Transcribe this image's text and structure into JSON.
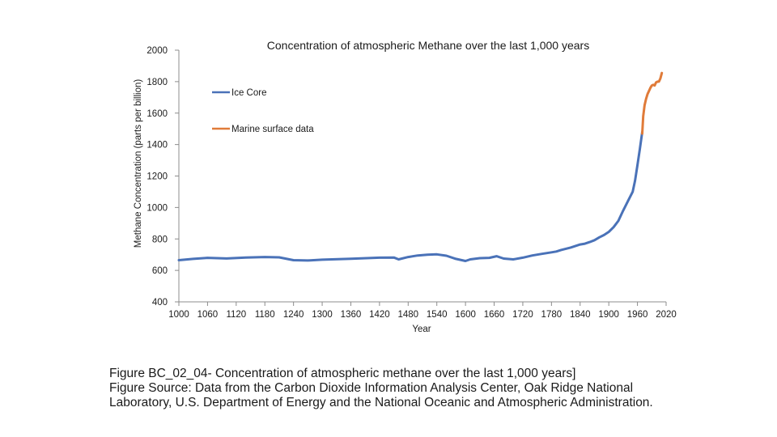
{
  "chart_data": {
    "type": "line",
    "title": "Concentration of atmospheric Methane over the last 1,000 years",
    "xlabel": "Year",
    "ylabel": "Methane Concentration (parts per billion)",
    "xlim": [
      1000,
      2020
    ],
    "ylim": [
      400,
      2000
    ],
    "x_ticks": [
      1000,
      1060,
      1120,
      1180,
      1240,
      1300,
      1360,
      1420,
      1480,
      1540,
      1600,
      1660,
      1720,
      1780,
      1840,
      1900,
      1960,
      2020
    ],
    "y_ticks": [
      400,
      600,
      800,
      1000,
      1200,
      1400,
      1600,
      1800,
      2000
    ],
    "grid": false,
    "legend": "upper-left",
    "series": [
      {
        "name": "Ice Core",
        "color": "#4a72b8",
        "x": [
          1000,
          1030,
          1060,
          1100,
          1140,
          1180,
          1210,
          1240,
          1270,
          1300,
          1360,
          1420,
          1450,
          1460,
          1480,
          1500,
          1520,
          1540,
          1560,
          1580,
          1600,
          1610,
          1630,
          1650,
          1665,
          1680,
          1700,
          1720,
          1740,
          1760,
          1780,
          1790,
          1800,
          1820,
          1840,
          1850,
          1860,
          1870,
          1880,
          1890,
          1900,
          1910,
          1920,
          1930,
          1940,
          1950,
          1955,
          1960,
          1965,
          1970
        ],
        "y": [
          665,
          673,
          680,
          676,
          682,
          685,
          683,
          665,
          663,
          668,
          674,
          681,
          682,
          670,
          685,
          695,
          700,
          702,
          693,
          673,
          660,
          670,
          678,
          680,
          690,
          675,
          670,
          681,
          695,
          705,
          715,
          720,
          730,
          745,
          765,
          770,
          780,
          792,
          810,
          825,
          845,
          875,
          915,
          980,
          1040,
          1100,
          1170,
          1270,
          1370,
          1480
        ]
      },
      {
        "name": "Marine surface data",
        "color": "#e07b39",
        "x": [
          1970,
          1972,
          1975,
          1978,
          1981,
          1984,
          1987,
          1990,
          1993,
          1996,
          1999,
          2002,
          2005,
          2008,
          2011
        ],
        "y": [
          1470,
          1580,
          1650,
          1690,
          1720,
          1740,
          1760,
          1775,
          1780,
          1775,
          1795,
          1800,
          1800,
          1820,
          1855
        ]
      }
    ]
  },
  "caption": {
    "line1": "Figure BC_02_04- Concentration of atmospheric methane over the last 1,000 years]",
    "line2": "Figure Source: Data from the Carbon Dioxide Information Analysis Center, Oak Ridge National",
    "line3": "Laboratory, U.S. Department of Energy and the National Oceanic and Atmospheric Administration."
  }
}
